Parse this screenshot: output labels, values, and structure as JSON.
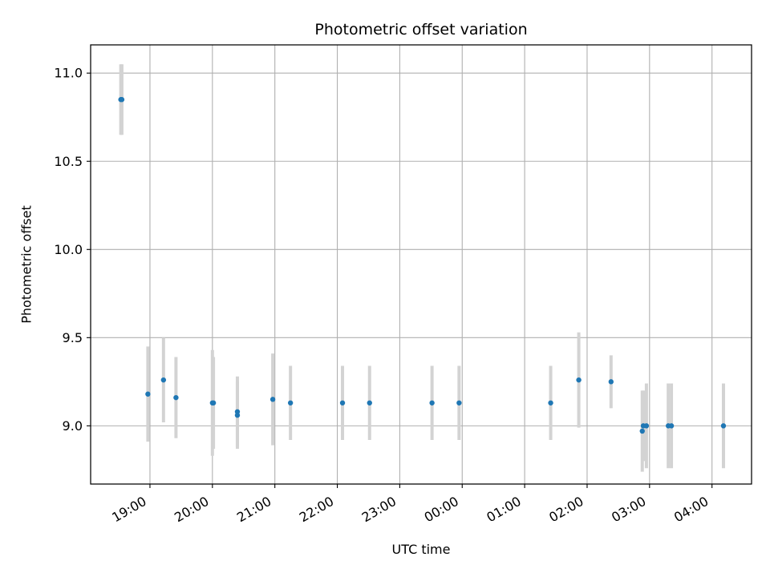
{
  "chart_data": {
    "type": "scatter",
    "title": "Photometric offset variation",
    "xlabel": "UTC time",
    "ylabel": "Photometric offset",
    "x_axis_type": "time",
    "x_start_date": "2023-01-01",
    "xlim": [
      "2023-01-01T18:03",
      "2023-01-02T04:38"
    ],
    "ylim": [
      8.67,
      11.16
    ],
    "x_ticks": [
      {
        "t": "2023-01-01T19:00",
        "label": "19:00"
      },
      {
        "t": "2023-01-01T20:00",
        "label": "20:00"
      },
      {
        "t": "2023-01-01T21:00",
        "label": "21:00"
      },
      {
        "t": "2023-01-01T22:00",
        "label": "22:00"
      },
      {
        "t": "2023-01-01T23:00",
        "label": "23:00"
      },
      {
        "t": "2023-01-02T00:00",
        "label": "00:00"
      },
      {
        "t": "2023-01-02T01:00",
        "label": "01:00"
      },
      {
        "t": "2023-01-02T02:00",
        "label": "02:00"
      },
      {
        "t": "2023-01-02T03:00",
        "label": "03:00"
      },
      {
        "t": "2023-01-02T04:00",
        "label": "04:00"
      }
    ],
    "y_ticks": [
      {
        "v": 9.0,
        "label": "9.0"
      },
      {
        "v": 9.5,
        "label": "9.5"
      },
      {
        "v": 10.0,
        "label": "10.0"
      },
      {
        "v": 10.5,
        "label": "10.5"
      },
      {
        "v": 11.0,
        "label": "11.0"
      }
    ],
    "grid": true,
    "point_color": "#1f77b4",
    "errorbar_color": "#d3d3d3",
    "points": [
      {
        "t": "2023-01-01T18:32",
        "y": 10.85,
        "err": 0.2
      },
      {
        "t": "2023-01-01T18:33",
        "y": 10.85,
        "err": 0.2
      },
      {
        "t": "2023-01-01T18:58",
        "y": 9.18,
        "err": 0.27
      },
      {
        "t": "2023-01-01T19:13",
        "y": 9.26,
        "err": 0.24
      },
      {
        "t": "2023-01-01T19:25",
        "y": 9.16,
        "err": 0.23
      },
      {
        "t": "2023-01-01T20:00",
        "y": 9.13,
        "err": 0.3
      },
      {
        "t": "2023-01-01T20:01",
        "y": 9.13,
        "err": 0.26
      },
      {
        "t": "2023-01-01T20:24",
        "y": 9.06,
        "err": 0.19
      },
      {
        "t": "2023-01-01T20:24",
        "y": 9.08,
        "err": 0.2
      },
      {
        "t": "2023-01-01T20:58",
        "y": 9.15,
        "err": 0.26
      },
      {
        "t": "2023-01-01T21:15",
        "y": 9.13,
        "err": 0.21
      },
      {
        "t": "2023-01-01T22:05",
        "y": 9.13,
        "err": 0.21
      },
      {
        "t": "2023-01-01T22:31",
        "y": 9.13,
        "err": 0.21
      },
      {
        "t": "2023-01-01T23:31",
        "y": 9.13,
        "err": 0.21
      },
      {
        "t": "2023-01-01T23:57",
        "y": 9.13,
        "err": 0.21
      },
      {
        "t": "2023-01-02T01:25",
        "y": 9.13,
        "err": 0.21
      },
      {
        "t": "2023-01-02T01:52",
        "y": 9.26,
        "err": 0.27
      },
      {
        "t": "2023-01-02T02:23",
        "y": 9.25,
        "err": 0.15
      },
      {
        "t": "2023-01-02T02:53",
        "y": 8.97,
        "err": 0.23
      },
      {
        "t": "2023-01-02T02:54",
        "y": 9.0,
        "err": 0.2
      },
      {
        "t": "2023-01-02T02:57",
        "y": 9.0,
        "err": 0.24
      },
      {
        "t": "2023-01-02T03:18",
        "y": 9.0,
        "err": 0.24
      },
      {
        "t": "2023-01-02T03:21",
        "y": 9.0,
        "err": 0.24
      },
      {
        "t": "2023-01-02T04:11",
        "y": 9.0,
        "err": 0.24
      }
    ]
  }
}
